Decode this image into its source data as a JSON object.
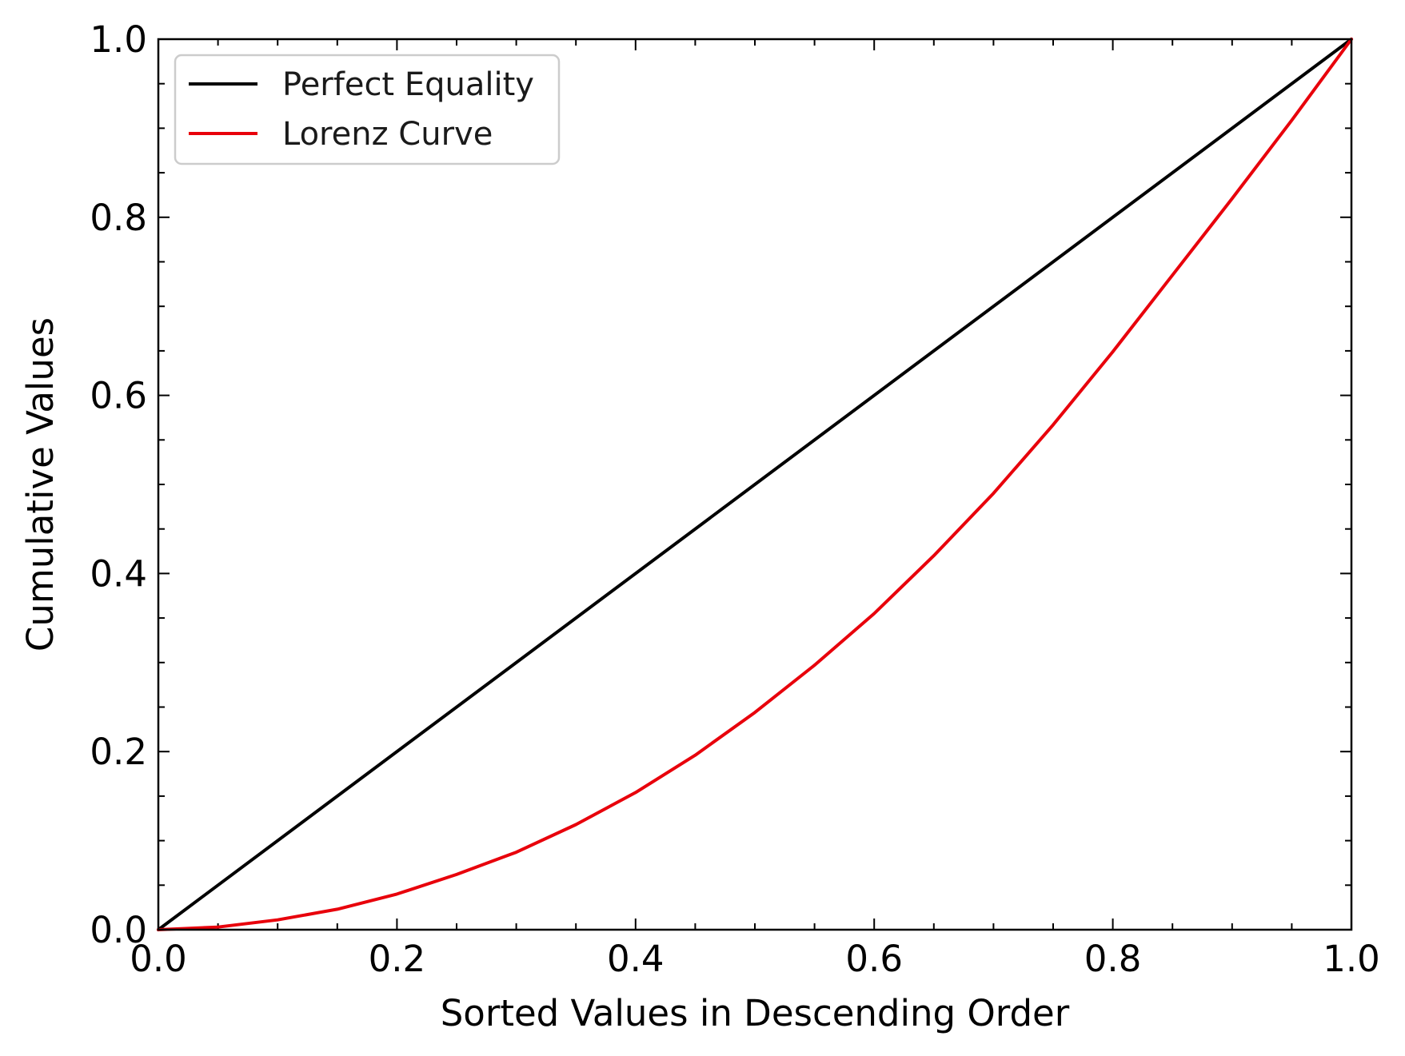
{
  "chart_data": {
    "type": "line",
    "title": "",
    "xlabel": "Sorted Values in Descending Order",
    "ylabel": "Cumulative Values",
    "xlim": [
      0.0,
      1.0
    ],
    "ylim": [
      0.0,
      1.0
    ],
    "x_ticks": [
      "0.0",
      "0.2",
      "0.4",
      "0.6",
      "0.8",
      "1.0"
    ],
    "y_ticks": [
      "0.0",
      "0.2",
      "0.4",
      "0.6",
      "0.8",
      "1.0"
    ],
    "x_tick_values": [
      0.0,
      0.2,
      0.4,
      0.6,
      0.8,
      1.0
    ],
    "y_tick_values": [
      0.0,
      0.2,
      0.4,
      0.6,
      0.8,
      1.0
    ],
    "minor_ticks": true,
    "tick_direction": "in",
    "grid": false,
    "legend_position": "top-left",
    "series": [
      {
        "name": "Perfect Equality",
        "color": "#000000",
        "x": [
          0.0,
          1.0
        ],
        "y": [
          0.0,
          1.0
        ]
      },
      {
        "name": "Lorenz Curve",
        "color": "#e8000b",
        "x": [
          0.0,
          0.05,
          0.1,
          0.15,
          0.2,
          0.25,
          0.3,
          0.35,
          0.4,
          0.45,
          0.5,
          0.55,
          0.6,
          0.65,
          0.7,
          0.75,
          0.8,
          0.85,
          0.9,
          0.95,
          1.0
        ],
        "y": [
          0.0,
          0.003,
          0.011,
          0.023,
          0.04,
          0.062,
          0.087,
          0.118,
          0.154,
          0.196,
          0.244,
          0.297,
          0.355,
          0.42,
          0.49,
          0.567,
          0.649,
          0.735,
          0.821,
          0.909,
          1.0
        ]
      }
    ]
  }
}
